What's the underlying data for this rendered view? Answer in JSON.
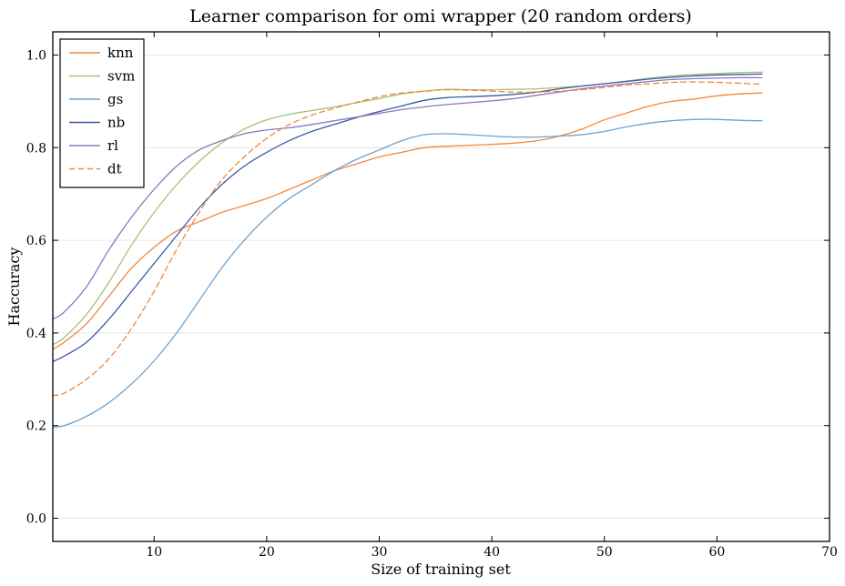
{
  "chart_data": {
    "type": "line",
    "title": "Learner comparison for omi wrapper (20 random orders)",
    "xlabel": "Size of training set",
    "ylabel": "Haccuracy",
    "xlim": [
      1,
      70
    ],
    "ylim": [
      -0.05,
      1.05
    ],
    "xticks": [
      10,
      20,
      30,
      40,
      50,
      60,
      70
    ],
    "yticks": [
      0.0,
      0.2,
      0.4,
      0.6,
      0.8,
      1.0
    ],
    "xtick_labels": [
      "10",
      "20",
      "30",
      "40",
      "50",
      "60",
      "70"
    ],
    "ytick_labels": [
      "0.0",
      "0.2",
      "0.4",
      "0.6",
      "0.8",
      "1.0"
    ],
    "grid": "horizontal",
    "legend_position": "top-left",
    "series": [
      {
        "name": "knn",
        "color": "#f0883a",
        "dash": "solid",
        "x": [
          1,
          2,
          4,
          6,
          8,
          10,
          12,
          14,
          16,
          18,
          20,
          22,
          24,
          26,
          28,
          30,
          32,
          34,
          36,
          38,
          40,
          42,
          44,
          46,
          48,
          50,
          52,
          54,
          56,
          58,
          60,
          62,
          64
        ],
        "y": [
          0.365,
          0.38,
          0.42,
          0.48,
          0.54,
          0.585,
          0.62,
          0.64,
          0.66,
          0.675,
          0.69,
          0.71,
          0.73,
          0.75,
          0.765,
          0.78,
          0.79,
          0.8,
          0.803,
          0.805,
          0.807,
          0.81,
          0.815,
          0.825,
          0.84,
          0.86,
          0.875,
          0.89,
          0.9,
          0.905,
          0.912,
          0.916,
          0.918
        ]
      },
      {
        "name": "svm",
        "color": "#a8c07a",
        "dash": "solid",
        "x": [
          1,
          2,
          4,
          6,
          8,
          10,
          12,
          14,
          16,
          18,
          20,
          22,
          24,
          26,
          28,
          30,
          32,
          34,
          36,
          38,
          40,
          42,
          44,
          46,
          48,
          50,
          52,
          54,
          56,
          58,
          60,
          62,
          64
        ],
        "y": [
          0.375,
          0.39,
          0.44,
          0.51,
          0.59,
          0.66,
          0.72,
          0.77,
          0.81,
          0.84,
          0.86,
          0.872,
          0.88,
          0.888,
          0.897,
          0.906,
          0.916,
          0.922,
          0.926,
          0.925,
          0.925,
          0.926,
          0.927,
          0.93,
          0.933,
          0.938,
          0.944,
          0.95,
          0.955,
          0.958,
          0.96,
          0.962,
          0.963
        ]
      },
      {
        "name": "gs",
        "color": "#6ea3cf",
        "dash": "solid",
        "x": [
          1,
          2,
          4,
          6,
          8,
          10,
          12,
          14,
          16,
          18,
          20,
          22,
          24,
          26,
          28,
          30,
          32,
          34,
          36,
          38,
          40,
          42,
          44,
          46,
          48,
          50,
          52,
          54,
          56,
          58,
          60,
          62,
          64
        ],
        "y": [
          0.197,
          0.2,
          0.22,
          0.25,
          0.29,
          0.34,
          0.4,
          0.47,
          0.54,
          0.6,
          0.65,
          0.69,
          0.72,
          0.75,
          0.775,
          0.795,
          0.815,
          0.828,
          0.83,
          0.828,
          0.825,
          0.823,
          0.823,
          0.825,
          0.828,
          0.835,
          0.845,
          0.853,
          0.858,
          0.861,
          0.861,
          0.859,
          0.858
        ]
      },
      {
        "name": "nb",
        "color": "#3a5aa8",
        "dash": "solid",
        "x": [
          1,
          2,
          4,
          6,
          8,
          10,
          12,
          14,
          16,
          18,
          20,
          22,
          24,
          26,
          28,
          30,
          32,
          34,
          36,
          38,
          40,
          42,
          44,
          46,
          48,
          50,
          52,
          54,
          56,
          58,
          60,
          62,
          64
        ],
        "y": [
          0.338,
          0.35,
          0.38,
          0.43,
          0.49,
          0.55,
          0.61,
          0.67,
          0.72,
          0.76,
          0.79,
          0.815,
          0.835,
          0.85,
          0.865,
          0.878,
          0.89,
          0.902,
          0.908,
          0.91,
          0.912,
          0.915,
          0.92,
          0.927,
          0.933,
          0.938,
          0.943,
          0.948,
          0.952,
          0.955,
          0.957,
          0.958,
          0.959
        ]
      },
      {
        "name": "rl",
        "color": "#8a78bc",
        "dash": "solid",
        "x": [
          1,
          2,
          4,
          6,
          8,
          10,
          12,
          14,
          16,
          18,
          20,
          22,
          24,
          26,
          28,
          30,
          32,
          34,
          36,
          38,
          40,
          42,
          44,
          46,
          48,
          50,
          52,
          54,
          56,
          58,
          60,
          62,
          64
        ],
        "y": [
          0.43,
          0.445,
          0.5,
          0.58,
          0.65,
          0.71,
          0.76,
          0.795,
          0.815,
          0.83,
          0.838,
          0.843,
          0.85,
          0.858,
          0.866,
          0.874,
          0.882,
          0.888,
          0.893,
          0.897,
          0.901,
          0.906,
          0.913,
          0.92,
          0.927,
          0.933,
          0.938,
          0.943,
          0.947,
          0.949,
          0.95,
          0.951,
          0.951
        ]
      },
      {
        "name": "dt",
        "color": "#f0883a",
        "dash": "dashed",
        "x": [
          1,
          2,
          4,
          6,
          8,
          10,
          12,
          14,
          16,
          18,
          20,
          22,
          24,
          26,
          28,
          30,
          32,
          34,
          36,
          38,
          40,
          42,
          44,
          46,
          48,
          50,
          52,
          54,
          56,
          58,
          60,
          62,
          64
        ],
        "y": [
          0.265,
          0.27,
          0.3,
          0.345,
          0.41,
          0.49,
          0.58,
          0.66,
          0.73,
          0.78,
          0.82,
          0.85,
          0.87,
          0.885,
          0.898,
          0.91,
          0.918,
          0.922,
          0.925,
          0.924,
          0.922,
          0.92,
          0.92,
          0.922,
          0.925,
          0.93,
          0.935,
          0.938,
          0.941,
          0.942,
          0.941,
          0.939,
          0.937
        ]
      }
    ]
  }
}
